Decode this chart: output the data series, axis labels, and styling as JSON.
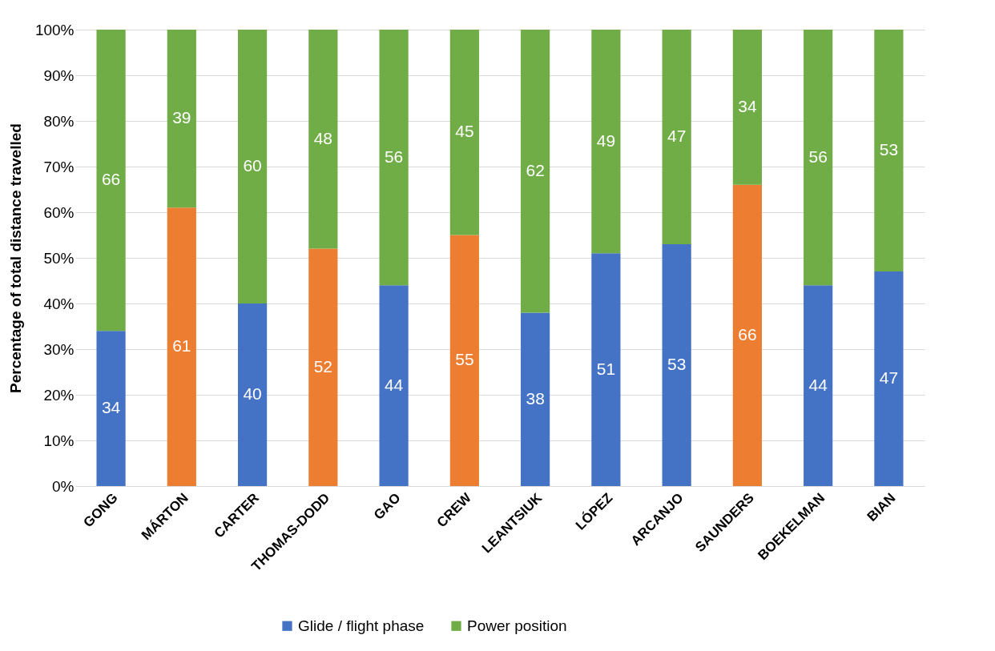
{
  "chart_data": {
    "type": "bar",
    "stacked": true,
    "ylabel": "Percentage of total distance travelled",
    "categories": [
      "GONG",
      "MÁRTON",
      "CARTER",
      "THOMAS-DODD",
      "GAO",
      "CREW",
      "LEANTSIUK",
      "LÓPEZ",
      "ARCANJO",
      "SAUNDERS",
      "BOEKELMAN",
      "BIAN"
    ],
    "series": [
      {
        "name": "Glide / flight phase",
        "color": "#4472c4",
        "colors": [
          "#4472c4",
          "#ed7d31",
          "#4472c4",
          "#ed7d31",
          "#4472c4",
          "#ed7d31",
          "#4472c4",
          "#4472c4",
          "#4472c4",
          "#ed7d31",
          "#4472c4",
          "#4472c4"
        ],
        "values": [
          34,
          61,
          40,
          52,
          44,
          55,
          38,
          51,
          53,
          66,
          44,
          47
        ]
      },
      {
        "name": "Power position",
        "color": "#70ad47",
        "values": [
          66,
          39,
          60,
          48,
          56,
          45,
          62,
          49,
          47,
          34,
          56,
          53
        ]
      }
    ],
    "data_labels": true,
    "ylim": [
      0,
      100
    ],
    "yticks": [
      {
        "value": 0,
        "label": "0%"
      },
      {
        "value": 10,
        "label": "10%"
      },
      {
        "value": 20,
        "label": "20%"
      },
      {
        "value": 30,
        "label": "30%"
      },
      {
        "value": 40,
        "label": "40%"
      },
      {
        "value": 50,
        "label": "50%"
      },
      {
        "value": 60,
        "label": "60%"
      },
      {
        "value": 70,
        "label": "70%"
      },
      {
        "value": 80,
        "label": "80%"
      },
      {
        "value": 90,
        "label": "90%"
      },
      {
        "value": 100,
        "label": "100%"
      }
    ],
    "grid": "y",
    "legend": "bottom"
  }
}
